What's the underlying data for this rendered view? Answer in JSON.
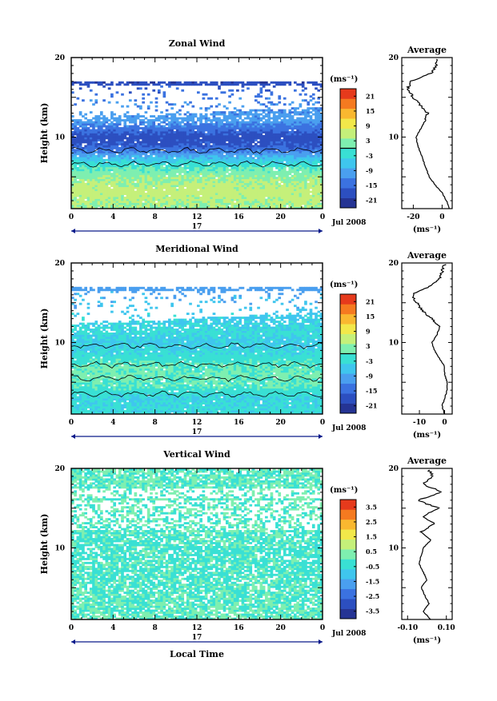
{
  "chart_data": [
    {
      "type": "heatmap",
      "title": "Zonal Wind",
      "ylabel": "Height (km)",
      "xlabel": "",
      "x_ticks": [
        "0",
        "4",
        "8",
        "12",
        "16",
        "20",
        "0"
      ],
      "y_ticks": [
        "20",
        "10"
      ],
      "xlim": [
        0,
        24
      ],
      "ylim": [
        1,
        20
      ],
      "date_label": "17",
      "month_label": "Jul 2008",
      "colorbar": {
        "unit": "(ms⁻¹)",
        "ticks": [
          "21",
          "15",
          "9",
          "3",
          "-3",
          "-9",
          "-15",
          "-21"
        ],
        "range": [
          -24,
          24
        ],
        "zero_contour": 0
      },
      "field_profile": [
        {
          "h": 1.3,
          "v": 4
        },
        {
          "h": 3,
          "v": 6
        },
        {
          "h": 5,
          "v": 3
        },
        {
          "h": 6,
          "v": 0
        },
        {
          "h": 7,
          "v": -5
        },
        {
          "h": 8,
          "v": -12
        },
        {
          "h": 9,
          "v": -17
        },
        {
          "h": 10,
          "v": -18
        },
        {
          "h": 11,
          "v": -14
        },
        {
          "h": 12,
          "v": -10
        },
        {
          "h": 15,
          "v": -13
        },
        {
          "h": 16.8,
          "v": -19
        }
      ],
      "average": {
        "title": "Average",
        "unit": "(ms⁻¹)",
        "x_ticks": [
          "-20",
          "0"
        ],
        "xlim": [
          -28,
          7
        ],
        "y_ticks": [
          "20",
          "10"
        ],
        "profile": [
          {
            "h": 1,
            "v": 5
          },
          {
            "h": 2,
            "v": 3
          },
          {
            "h": 3,
            "v": 0
          },
          {
            "h": 4,
            "v": -5
          },
          {
            "h": 5,
            "v": -9
          },
          {
            "h": 6,
            "v": -11
          },
          {
            "h": 7,
            "v": -13
          },
          {
            "h": 8,
            "v": -15
          },
          {
            "h": 9,
            "v": -17
          },
          {
            "h": 10,
            "v": -18
          },
          {
            "h": 11,
            "v": -15
          },
          {
            "h": 12,
            "v": -12
          },
          {
            "h": 13,
            "v": -10
          },
          {
            "h": 14,
            "v": -15
          },
          {
            "h": 15,
            "v": -20
          },
          {
            "h": 16,
            "v": -24
          },
          {
            "h": 17,
            "v": -22
          },
          {
            "h": 18,
            "v": -8
          },
          {
            "h": 19,
            "v": -4
          },
          {
            "h": 19.8,
            "v": -3
          }
        ]
      }
    },
    {
      "type": "heatmap",
      "title": "Meridional Wind",
      "ylabel": "Height (km)",
      "xlabel": "",
      "x_ticks": [
        "0",
        "4",
        "8",
        "12",
        "16",
        "20",
        "0"
      ],
      "y_ticks": [
        "20",
        "10"
      ],
      "xlim": [
        0,
        24
      ],
      "ylim": [
        1,
        20
      ],
      "date_label": "17",
      "month_label": "Jul 2008",
      "colorbar": {
        "unit": "(ms⁻¹)",
        "ticks": [
          "21",
          "15",
          "9",
          "3",
          "-3",
          "-9",
          "-15",
          "-21"
        ],
        "range": [
          -24,
          24
        ],
        "zero_contour": 0
      },
      "field_profile": [
        {
          "h": 1.3,
          "v": -3
        },
        {
          "h": 3,
          "v": -4
        },
        {
          "h": 4.5,
          "v": 0
        },
        {
          "h": 6,
          "v": 1
        },
        {
          "h": 7,
          "v": 0
        },
        {
          "h": 8,
          "v": -2
        },
        {
          "h": 9,
          "v": -4
        },
        {
          "h": 10,
          "v": -5
        },
        {
          "h": 11,
          "v": -3
        },
        {
          "h": 14,
          "v": -6
        },
        {
          "h": 16.5,
          "v": -10
        }
      ],
      "average": {
        "title": "Average",
        "unit": "(ms⁻¹)",
        "x_ticks": [
          "-10",
          "0"
        ],
        "xlim": [
          -17,
          3
        ],
        "y_ticks": [
          "20",
          "10"
        ],
        "profile": [
          {
            "h": 1,
            "v": 0
          },
          {
            "h": 2,
            "v": -1
          },
          {
            "h": 3,
            "v": 0
          },
          {
            "h": 4,
            "v": 1
          },
          {
            "h": 5,
            "v": 1
          },
          {
            "h": 6,
            "v": 0
          },
          {
            "h": 7,
            "v": 0
          },
          {
            "h": 8,
            "v": -2
          },
          {
            "h": 9,
            "v": -4
          },
          {
            "h": 10,
            "v": -5
          },
          {
            "h": 11,
            "v": -3
          },
          {
            "h": 12,
            "v": -2
          },
          {
            "h": 13,
            "v": -5
          },
          {
            "h": 14,
            "v": -9
          },
          {
            "h": 15,
            "v": -11
          },
          {
            "h": 16,
            "v": -13
          },
          {
            "h": 17,
            "v": -6
          },
          {
            "h": 18,
            "v": -2
          },
          {
            "h": 19,
            "v": -1
          },
          {
            "h": 19.8,
            "v": 0
          }
        ]
      }
    },
    {
      "type": "heatmap",
      "title": "Vertical Wind",
      "ylabel": "Height (km)",
      "xlabel": "Local Time",
      "x_ticks": [
        "0",
        "4",
        "8",
        "12",
        "16",
        "20",
        "0"
      ],
      "y_ticks": [
        "20",
        "10"
      ],
      "xlim": [
        0,
        24
      ],
      "ylim": [
        1,
        20
      ],
      "date_label": "17",
      "month_label": "Jul 2008",
      "colorbar": {
        "unit": "(ms⁻¹)",
        "ticks": [
          "3.5",
          "2.5",
          "1.5",
          "0.5",
          "-0.5",
          "-1.5",
          "-2.5",
          "-3.5"
        ],
        "range": [
          -4,
          4
        ]
      },
      "field_profile": [
        {
          "h": 1,
          "v": 0.1
        },
        {
          "h": 5,
          "v": -0.1
        },
        {
          "h": 10,
          "v": -0.2
        },
        {
          "h": 15,
          "v": 0.05
        },
        {
          "h": 20,
          "v": 0.0
        }
      ],
      "average": {
        "title": "Average",
        "unit": "(ms⁻¹)",
        "x_ticks": [
          "-0.10",
          "0.10"
        ],
        "xlim": [
          -0.13,
          0.13
        ],
        "y_ticks": [
          "20",
          "10"
        ],
        "profile": [
          {
            "h": 1,
            "v": 0.02
          },
          {
            "h": 2,
            "v": -0.02
          },
          {
            "h": 3,
            "v": 0.01
          },
          {
            "h": 4,
            "v": -0.01
          },
          {
            "h": 5,
            "v": -0.03
          },
          {
            "h": 6,
            "v": 0.0
          },
          {
            "h": 7,
            "v": -0.02
          },
          {
            "h": 8,
            "v": -0.04
          },
          {
            "h": 9,
            "v": -0.03
          },
          {
            "h": 10,
            "v": -0.02
          },
          {
            "h": 11,
            "v": 0.02
          },
          {
            "h": 12,
            "v": -0.03
          },
          {
            "h": 13,
            "v": 0.04
          },
          {
            "h": 14,
            "v": -0.02
          },
          {
            "h": 15,
            "v": 0.06
          },
          {
            "h": 16,
            "v": -0.05
          },
          {
            "h": 17,
            "v": 0.08
          },
          {
            "h": 18,
            "v": -0.02
          },
          {
            "h": 19,
            "v": 0.03
          },
          {
            "h": 19.8,
            "v": 0.01
          }
        ]
      }
    }
  ],
  "colors": {
    "colormap": [
      "#253494",
      "#2c4fc0",
      "#3b72e0",
      "#4a9fef",
      "#3fc6ee",
      "#39e0d4",
      "#7eefb0",
      "#c5f07a",
      "#f2e84a",
      "#f9b830",
      "#f57a20",
      "#e63a1c"
    ]
  }
}
